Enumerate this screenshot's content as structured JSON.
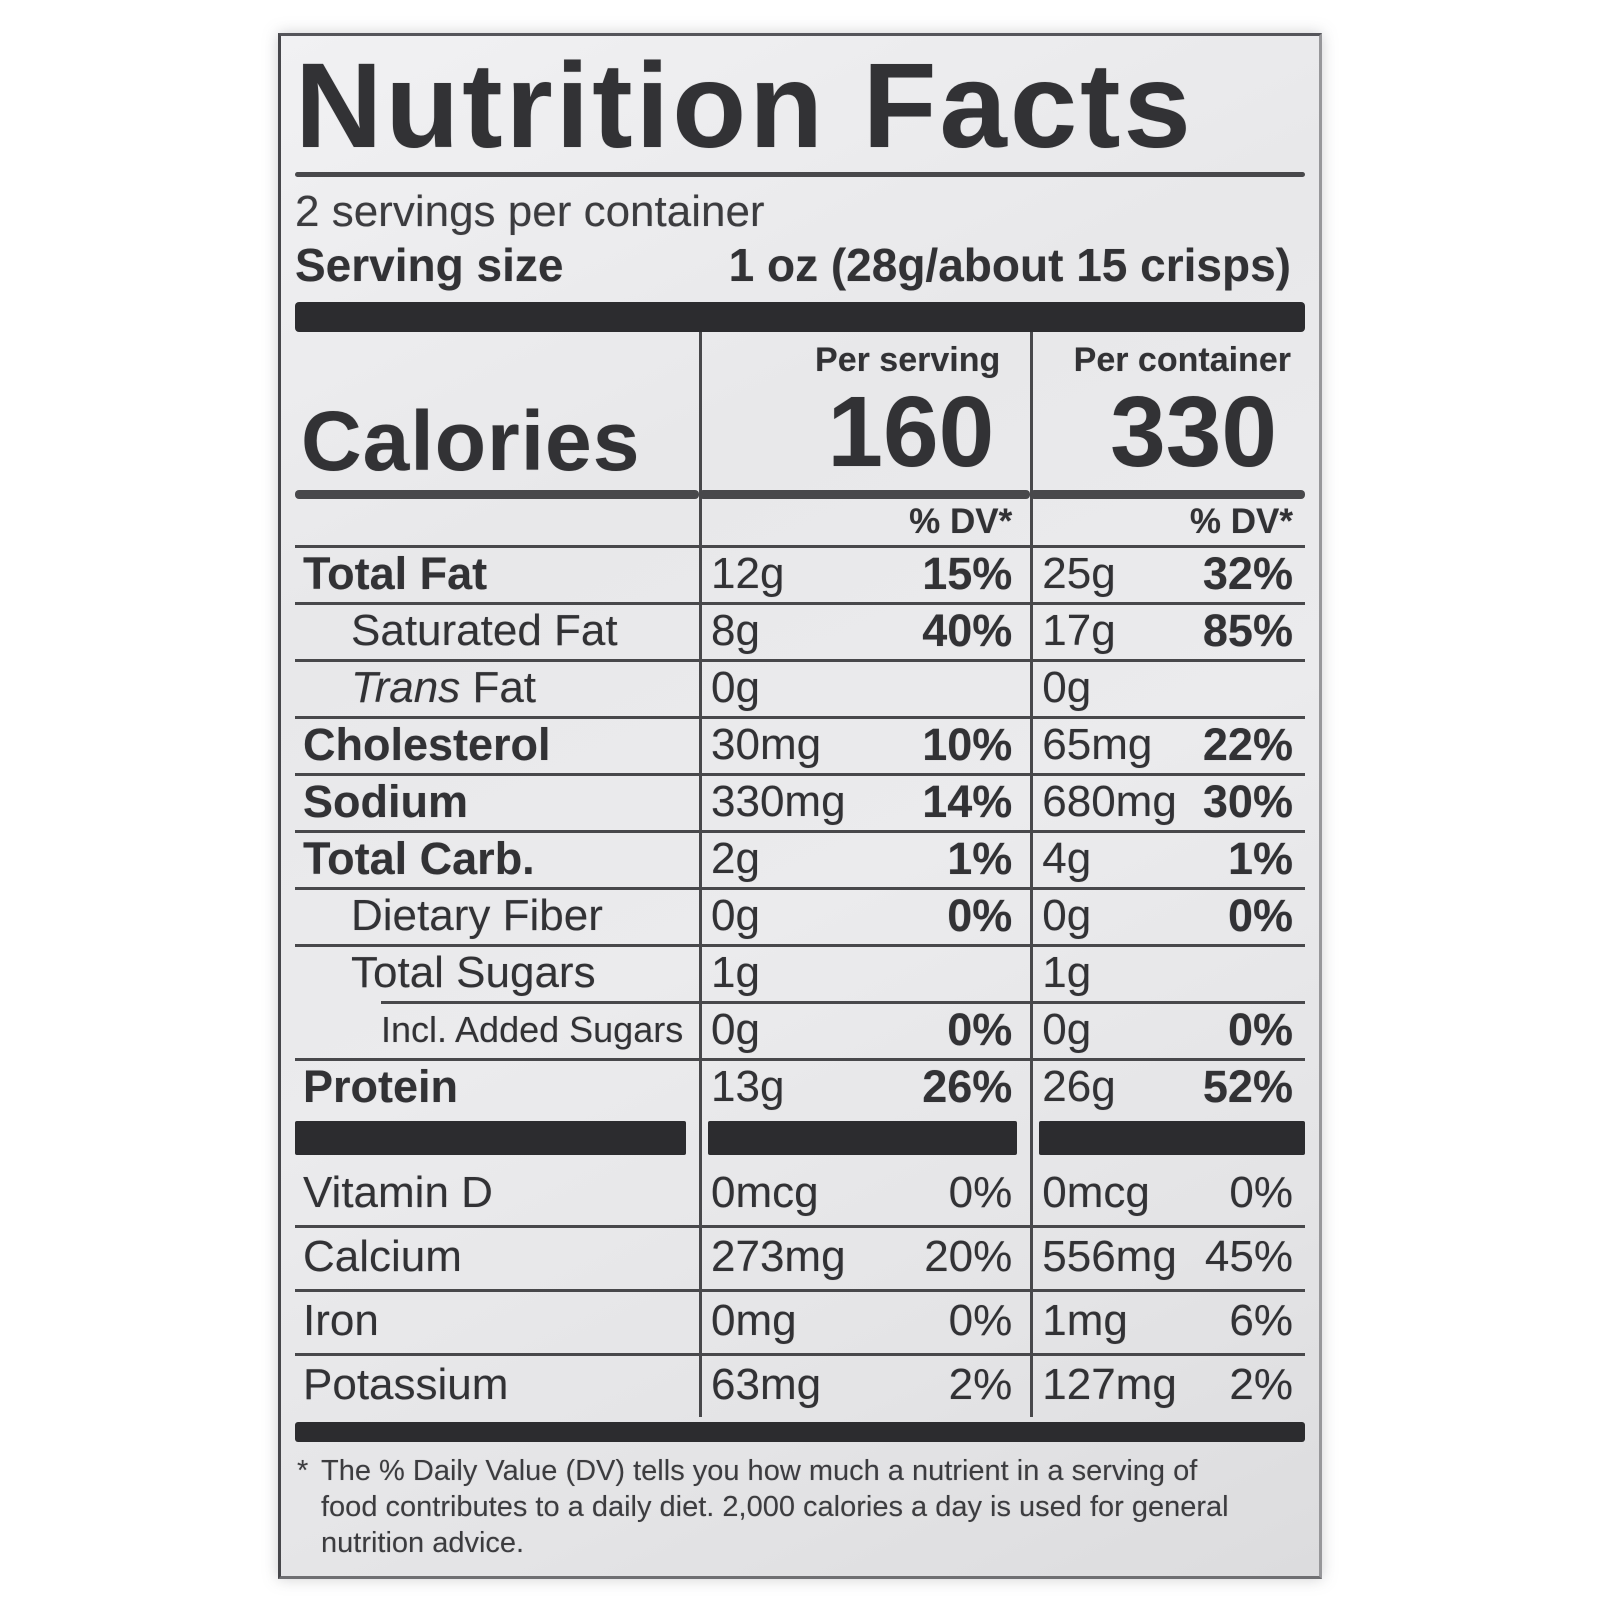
{
  "theme": {
    "ink": "#323235",
    "line": "#48484b",
    "bar": "#2c2c2f",
    "page_bg": "#ffffff",
    "label_bg": "#e8e8ea"
  },
  "label": {
    "title": "Nutrition Facts",
    "servings_per_container": "2 servings per container",
    "serving_size": {
      "label": "Serving size",
      "value": "1 oz (28g/about 15 crisps)"
    },
    "columns": {
      "per_serving": "Per serving",
      "per_container": "Per container"
    },
    "calories": {
      "label": "Calories",
      "per_serving": "160",
      "per_container": "330"
    },
    "dv_header": "% DV*",
    "nutrients": [
      {
        "name": "Total Fat",
        "italic": "",
        "cls": "bold",
        "s_amt": "12g",
        "s_dv": "15%",
        "c_amt": "25g",
        "c_dv": "32%"
      },
      {
        "name": "Saturated Fat",
        "italic": "",
        "cls": "indent",
        "s_amt": "8g",
        "s_dv": "40%",
        "c_amt": "17g",
        "c_dv": "85%"
      },
      {
        "name": " Fat",
        "italic": "Trans",
        "cls": "indent",
        "s_amt": "0g",
        "s_dv": "",
        "c_amt": "0g",
        "c_dv": ""
      },
      {
        "name": "Cholesterol",
        "italic": "",
        "cls": "bold",
        "s_amt": "30mg",
        "s_dv": "10%",
        "c_amt": "65mg",
        "c_dv": "22%"
      },
      {
        "name": "Sodium",
        "italic": "",
        "cls": "bold",
        "s_amt": "330mg",
        "s_dv": "14%",
        "c_amt": "680mg",
        "c_dv": "30%"
      },
      {
        "name": "Total Carb.",
        "italic": "",
        "cls": "bold",
        "s_amt": "2g",
        "s_dv": "1%",
        "c_amt": "4g",
        "c_dv": "1%"
      },
      {
        "name": "Dietary Fiber",
        "italic": "",
        "cls": "indent",
        "s_amt": "0g",
        "s_dv": "0%",
        "c_amt": "0g",
        "c_dv": "0%"
      },
      {
        "name": "Total Sugars",
        "italic": "",
        "cls": "indent",
        "s_amt": "1g",
        "s_dv": "",
        "c_amt": "1g",
        "c_dv": ""
      },
      {
        "name": "Incl. Added Sugars",
        "italic": "",
        "cls": "indent2 inset",
        "s_amt": "0g",
        "s_dv": "0%",
        "c_amt": "0g",
        "c_dv": "0%"
      },
      {
        "name": "Protein",
        "italic": "",
        "cls": "bold",
        "s_amt": "13g",
        "s_dv": "26%",
        "c_amt": "26g",
        "c_dv": "52%"
      }
    ],
    "micronutrients": [
      {
        "name": "Vitamin D",
        "s_amt": "0mcg",
        "s_dv": "0%",
        "c_amt": "0mcg",
        "c_dv": "0%"
      },
      {
        "name": "Calcium",
        "s_amt": "273mg",
        "s_dv": "20%",
        "c_amt": "556mg",
        "c_dv": "45%"
      },
      {
        "name": "Iron",
        "s_amt": "0mg",
        "s_dv": "0%",
        "c_amt": "1mg",
        "c_dv": "6%"
      },
      {
        "name": "Potassium",
        "s_amt": "63mg",
        "s_dv": "2%",
        "c_amt": "127mg",
        "c_dv": "2%"
      }
    ],
    "footnote": {
      "marker": "*",
      "lines": [
        "The % Daily Value (DV) tells you how much a nutrient in a serving of",
        "food contributes to a daily diet. 2,000 calories a day is used for general",
        "nutrition advice."
      ]
    }
  }
}
